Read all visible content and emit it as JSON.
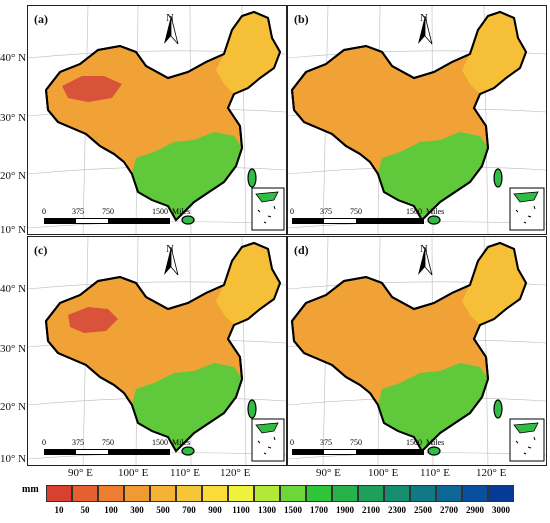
{
  "panels": [
    {
      "label": "(a)"
    },
    {
      "label": "(b)"
    },
    {
      "label": "(c)"
    },
    {
      "label": "(d)"
    }
  ],
  "north_label": "N",
  "lat_labels": [
    "40° N",
    "30° N",
    "20° N",
    "10° N"
  ],
  "lon_labels": [
    "90° E",
    "100° E",
    "110° E",
    "120° E"
  ],
  "scale_bar": {
    "ticks": [
      "0",
      "375",
      "750",
      "1500"
    ],
    "unit": "Miles"
  },
  "legend": {
    "unit": "mm",
    "ticks": [
      "10",
      "50",
      "100",
      "300",
      "500",
      "700",
      "900",
      "1100",
      "1300",
      "1500",
      "1700",
      "1900",
      "2100",
      "2300",
      "2500",
      "2700",
      "2900",
      "3000"
    ],
    "colors": [
      "#d7412d",
      "#e4602f",
      "#ec7d31",
      "#f09a33",
      "#f4b235",
      "#f7c638",
      "#f9dc3a",
      "#eef23c",
      "#b3e83a",
      "#6dd638",
      "#2fc53a",
      "#27b24a",
      "#1e9f5c",
      "#178d70",
      "#117984",
      "#0d6698",
      "#0a4f9e",
      "#073a96"
    ]
  },
  "map_colors": {
    "west": "#e8752f",
    "center": "#f0a236",
    "northeast": "#f6bf38",
    "south": "#5fc93b",
    "southeast": "#2fbd44",
    "hotspot": "#d9533a"
  }
}
